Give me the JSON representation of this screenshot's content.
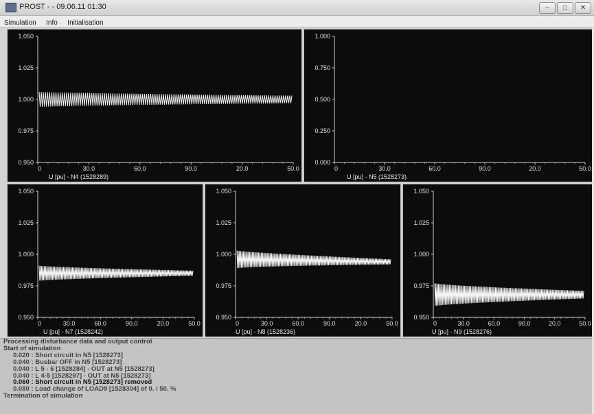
{
  "window": {
    "title": "PROST -  - 09.06.11 01:30",
    "buttons": [
      "–",
      "□",
      "✕"
    ]
  },
  "menu": [
    "Simulation",
    "Info",
    "Initialisation"
  ],
  "x_ticks": [
    "0",
    "30.0",
    "60.0",
    "90.0",
    "20.0",
    "50.0"
  ],
  "plots": [
    {
      "id": "n4",
      "label": "U [pu]  - N4 (1528289)",
      "y_ticks": [
        "1.050",
        "1.025",
        "1.000",
        "0.975",
        "0.950"
      ],
      "ylim": [
        0.95,
        1.05
      ],
      "trace": {
        "start": 1.0,
        "end": 1.0,
        "amp_start": 0.006,
        "amp_end": 0.003
      }
    },
    {
      "id": "n5",
      "label": "U [pu]  - N5 (1528273)",
      "y_ticks": [
        "1.000",
        "0.750",
        "0.500",
        "0.250",
        "0.000"
      ],
      "ylim": [
        0.0,
        1.0
      ],
      "trace": null
    },
    {
      "id": "n7",
      "label": "U [pu]  - N7 (1528242)",
      "y_ticks": [
        "1.050",
        "1.025",
        "1.000",
        "0.975",
        "0.950"
      ],
      "ylim": [
        0.95,
        1.05
      ],
      "trace": {
        "start": 0.985,
        "end": 0.985,
        "amp_start": 0.006,
        "amp_end": 0.002
      }
    },
    {
      "id": "n8",
      "label": "U [pu]  - N8 (1528236)",
      "y_ticks": [
        "1.050",
        "1.025",
        "1.000",
        "0.975",
        "0.950"
      ],
      "ylim": [
        0.95,
        1.05
      ],
      "trace": {
        "start": 0.996,
        "end": 0.994,
        "amp_start": 0.007,
        "amp_end": 0.002
      }
    },
    {
      "id": "n9",
      "label": "U [pu]  - N9 (1528276)",
      "y_ticks": [
        "1.050",
        "1.025",
        "1.000",
        "0.975",
        "0.950"
      ],
      "ylim": [
        0.95,
        1.05
      ],
      "trace": {
        "start": 0.968,
        "end": 0.968,
        "amp_start": 0.009,
        "amp_end": 0.003
      }
    }
  ],
  "log": {
    "header": "Processing disturbance data and output control",
    "start": "Start of simulation",
    "events": [
      "0.020 : Short circuit in N5 [1528273]",
      "0.040 : Busbar OFF in N5 [1528273]",
      "0.040 : L 5 - 6 [1528284] - OUT at N5 [1528273]",
      "0.040 : L 4-5 [1528297] - OUT at N5 [1528273]",
      "0.060 : Short circuit in N5 [1528273] removed",
      "0.080 : Load change of LOAD9 [1528304] of     0. /  50. %"
    ],
    "end": "Termination of simulation"
  }
}
